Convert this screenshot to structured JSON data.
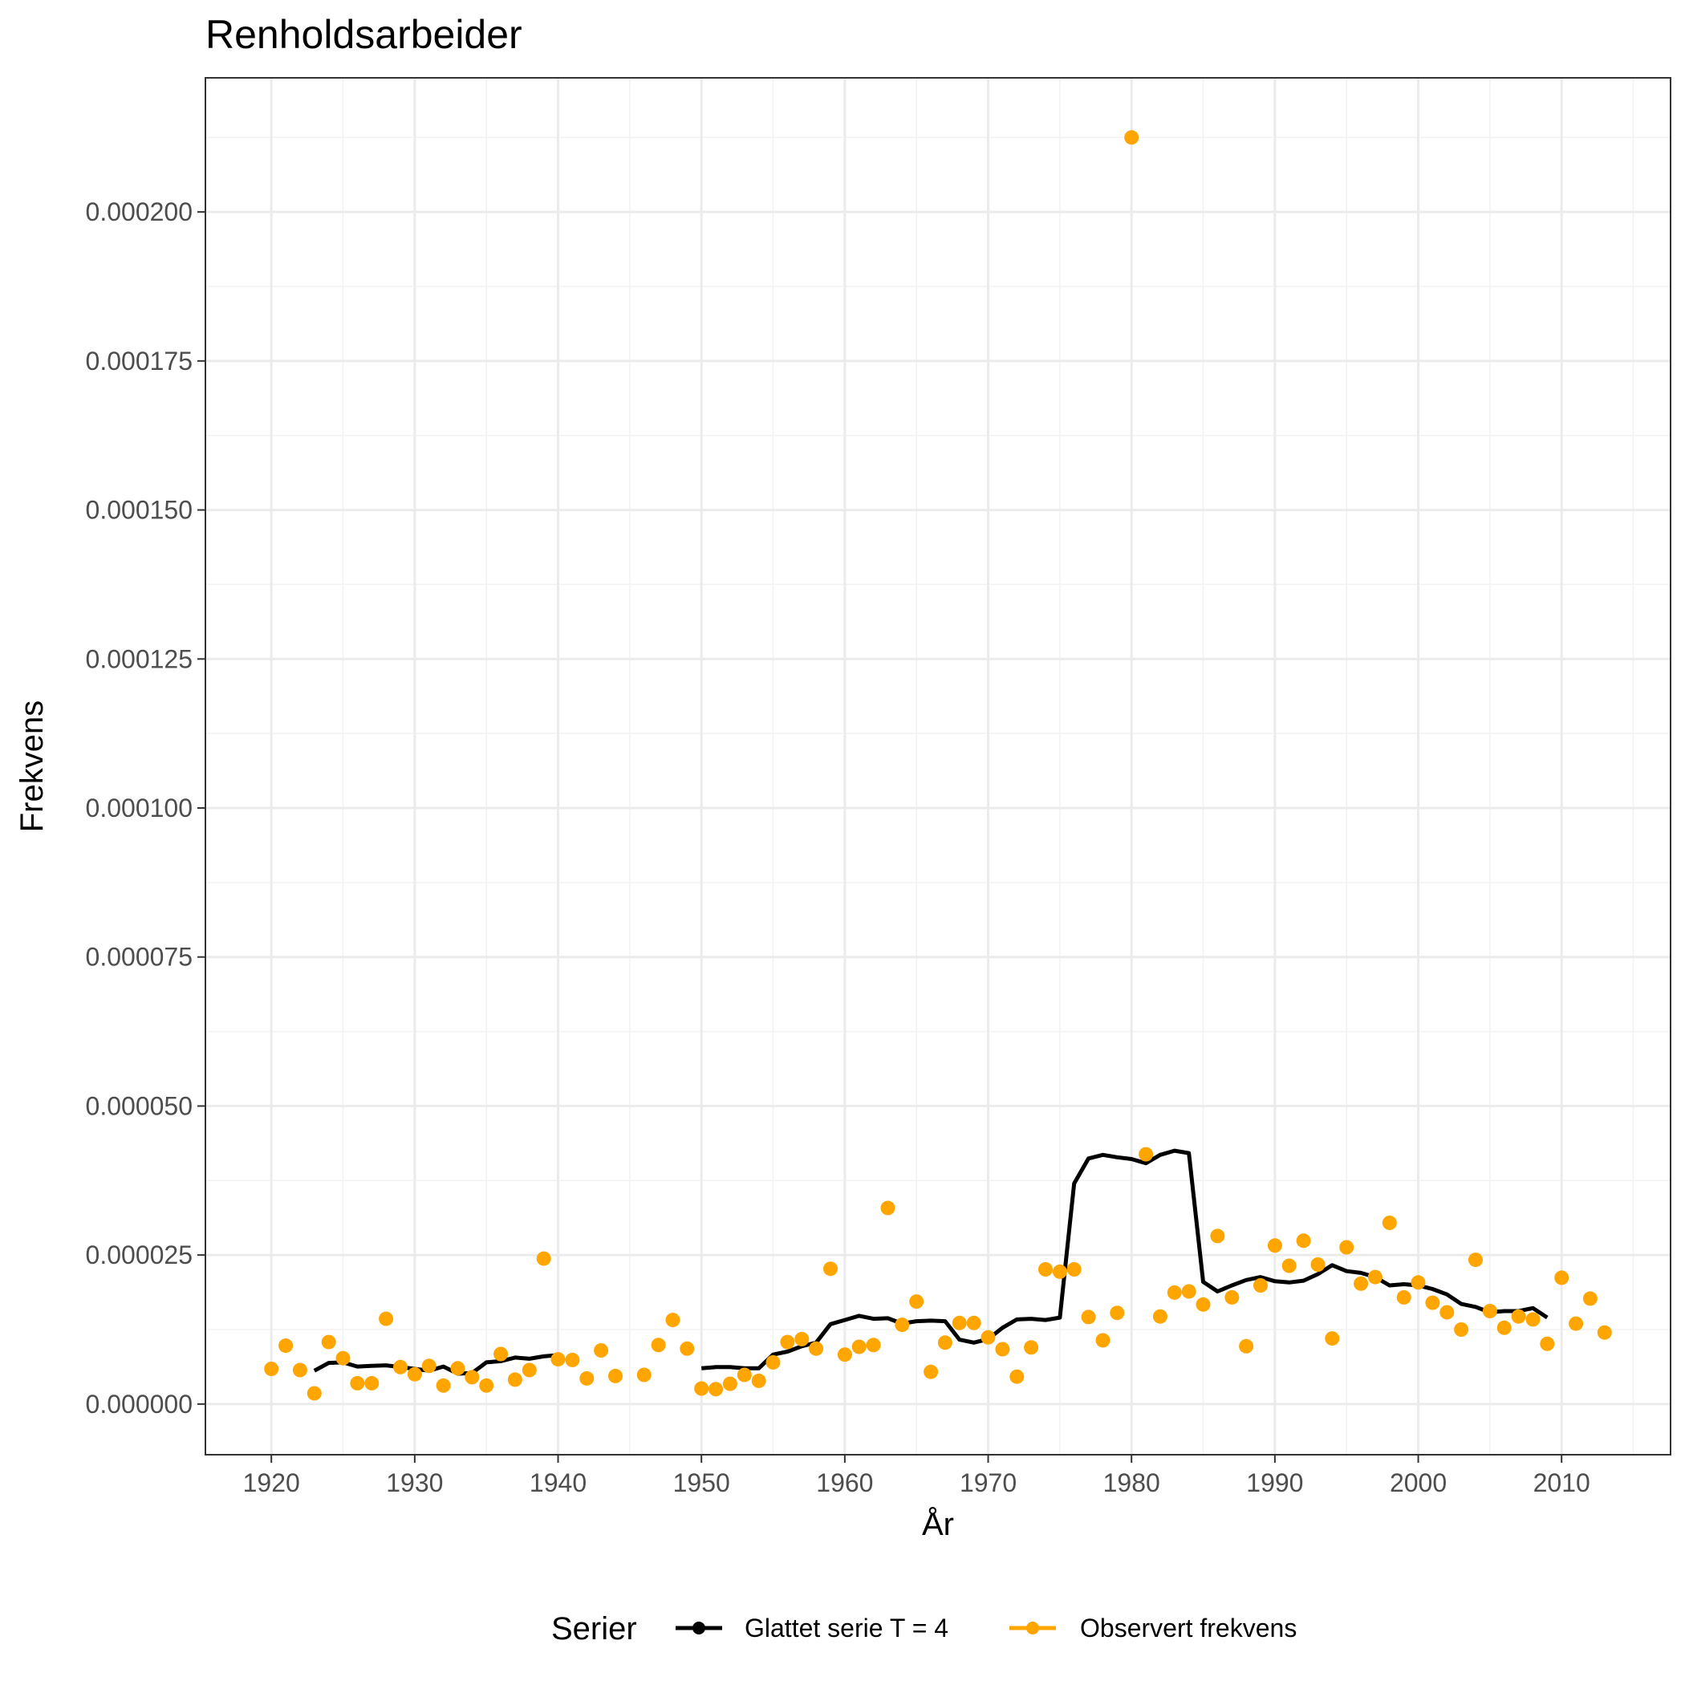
{
  "chart_data": {
    "type": "line",
    "title": "Renholdsarbeider",
    "xlabel": "År",
    "ylabel": "Frekvens",
    "xlim": [
      1915.4,
      2017.6
    ],
    "ylim": [
      -8.5e-06,
      0.0002225
    ],
    "x_ticks": [
      1920,
      1930,
      1940,
      1950,
      1960,
      1970,
      1980,
      1990,
      2000,
      2010
    ],
    "x_tick_labels": [
      "1920",
      "1930",
      "1940",
      "1950",
      "1960",
      "1970",
      "1980",
      "1990",
      "2000",
      "2010"
    ],
    "y_ticks": [
      0,
      2.5e-05,
      5e-05,
      7.5e-05,
      0.0001,
      0.000125,
      0.00015,
      0.000175,
      0.0002
    ],
    "y_tick_labels": [
      "0.000000",
      "0.000025",
      "0.000050",
      "0.000075",
      "0.000100",
      "0.000125",
      "0.000150",
      "0.000175",
      "0.000200"
    ],
    "grid": true,
    "legend_position": "bottom",
    "legend_title": "Serier",
    "series": [
      {
        "name": "Glattet serie T  = 4",
        "type": "line",
        "color": "#000000",
        "segments": [
          {
            "x": [
              1923,
              1924,
              1925,
              1926,
              1927,
              1928,
              1929,
              1930,
              1931,
              1932,
              1933,
              1934,
              1935,
              1936,
              1937,
              1938,
              1939,
              1940
            ],
            "y": [
              5.6e-06,
              6.9e-06,
              7e-06,
              6.3e-06,
              6.4e-06,
              6.5e-06,
              6.2e-06,
              5.9e-06,
              5.6e-06,
              6.3e-06,
              5.1e-06,
              5.2e-06,
              7e-06,
              7.2e-06,
              7.8e-06,
              7.6e-06,
              8e-06,
              8.2e-06
            ]
          },
          {
            "x": [
              1950,
              1951,
              1952,
              1953,
              1954,
              1955,
              1956,
              1957,
              1958,
              1959,
              1960,
              1961,
              1962,
              1963,
              1964,
              1965,
              1966,
              1967,
              1968,
              1969,
              1970,
              1971,
              1972,
              1973,
              1974,
              1975,
              1976,
              1977,
              1978,
              1979,
              1980,
              1981,
              1982,
              1983,
              1984,
              1985,
              1986,
              1987,
              1988,
              1989,
              1990,
              1991,
              1992,
              1993,
              1994,
              1995,
              1996,
              1997,
              1998,
              1999,
              2000,
              2001,
              2002,
              2003,
              2004,
              2005,
              2006,
              2007,
              2008,
              2009
            ],
            "y": [
              6e-06,
              6.2e-06,
              6.2e-06,
              6e-06,
              6e-06,
              8.3e-06,
              8.8e-06,
              9.7e-06,
              1.03e-05,
              1.34e-05,
              1.41e-05,
              1.48e-05,
              1.43e-05,
              1.44e-05,
              1.35e-05,
              1.39e-05,
              1.4e-05,
              1.39e-05,
              1.08e-05,
              1.03e-05,
              1.09e-05,
              1.28e-05,
              1.42e-05,
              1.43e-05,
              1.41e-05,
              1.45e-05,
              3.7e-05,
              4.12e-05,
              4.18e-05,
              4.14e-05,
              4.11e-05,
              4.04e-05,
              4.18e-05,
              4.25e-05,
              4.21e-05,
              2.05e-05,
              1.89e-05,
              1.99e-05,
              2.08e-05,
              2.13e-05,
              2.06e-05,
              2.04e-05,
              2.07e-05,
              2.18e-05,
              2.33e-05,
              2.23e-05,
              2.2e-05,
              2.13e-05,
              1.99e-05,
              2.01e-05,
              1.99e-05,
              1.93e-05,
              1.84e-05,
              1.68e-05,
              1.63e-05,
              1.54e-05,
              1.56e-05,
              1.56e-05,
              1.61e-05,
              1.45e-05
            ]
          }
        ]
      },
      {
        "name": "Observert frekvens",
        "type": "scatter",
        "color": "#ffa500",
        "x": [
          1920,
          1921,
          1922,
          1923,
          1924,
          1925,
          1926,
          1927,
          1928,
          1929,
          1930,
          1931,
          1932,
          1933,
          1934,
          1935,
          1936,
          1937,
          1938,
          1939,
          1940,
          1941,
          1942,
          1943,
          1944,
          1946,
          1947,
          1948,
          1949,
          1950,
          1951,
          1952,
          1953,
          1954,
          1955,
          1956,
          1957,
          1958,
          1959,
          1960,
          1961,
          1962,
          1963,
          1964,
          1965,
          1966,
          1967,
          1968,
          1969,
          1970,
          1971,
          1972,
          1973,
          1974,
          1975,
          1976,
          1977,
          1978,
          1979,
          1980,
          1981,
          1982,
          1983,
          1984,
          1985,
          1986,
          1987,
          1988,
          1989,
          1990,
          1991,
          1992,
          1993,
          1994,
          1995,
          1996,
          1997,
          1998,
          1999,
          2000,
          2001,
          2002,
          2003,
          2004,
          2005,
          2006,
          2007,
          2008,
          2009,
          2010,
          2011,
          2012,
          2013
        ],
        "y": [
          5.9e-06,
          9.8e-06,
          5.7e-06,
          1.8e-06,
          1.04e-05,
          7.7e-06,
          3.5e-06,
          3.5e-06,
          1.43e-05,
          6.2e-06,
          5e-06,
          6.4e-06,
          3.1e-06,
          6e-06,
          4.5e-06,
          3.1e-06,
          8.4e-06,
          4.1e-06,
          5.7e-06,
          2.44e-05,
          7.5e-06,
          7.4e-06,
          4.3e-06,
          9e-06,
          4.7e-06,
          4.9e-06,
          9.9e-06,
          1.41e-05,
          9.3e-06,
          2.6e-06,
          2.5e-06,
          3.4e-06,
          4.9e-06,
          3.9e-06,
          7e-06,
          1.04e-05,
          1.09e-05,
          9.3e-06,
          2.27e-05,
          8.3e-06,
          9.6e-06,
          9.9e-06,
          3.29e-05,
          1.33e-05,
          1.72e-05,
          5.4e-06,
          1.03e-05,
          1.36e-05,
          1.36e-05,
          1.12e-05,
          9.2e-06,
          4.6e-06,
          9.5e-06,
          2.26e-05,
          2.22e-05,
          2.26e-05,
          1.46e-05,
          1.07e-05,
          1.53e-05,
          0.0002125,
          4.19e-05,
          1.47e-05,
          1.87e-05,
          1.89e-05,
          1.67e-05,
          2.82e-05,
          1.79e-05,
          9.7e-06,
          1.99e-05,
          2.66e-05,
          2.32e-05,
          2.74e-05,
          2.34e-05,
          1.1e-05,
          2.63e-05,
          2.02e-05,
          2.13e-05,
          3.04e-05,
          1.79e-05,
          2.04e-05,
          1.7e-05,
          1.54e-05,
          1.25e-05,
          2.42e-05,
          1.56e-05,
          1.28e-05,
          1.47e-05,
          1.42e-05,
          1.01e-05,
          2.12e-05,
          1.35e-05,
          1.77e-05,
          1.2e-05
        ]
      }
    ]
  }
}
